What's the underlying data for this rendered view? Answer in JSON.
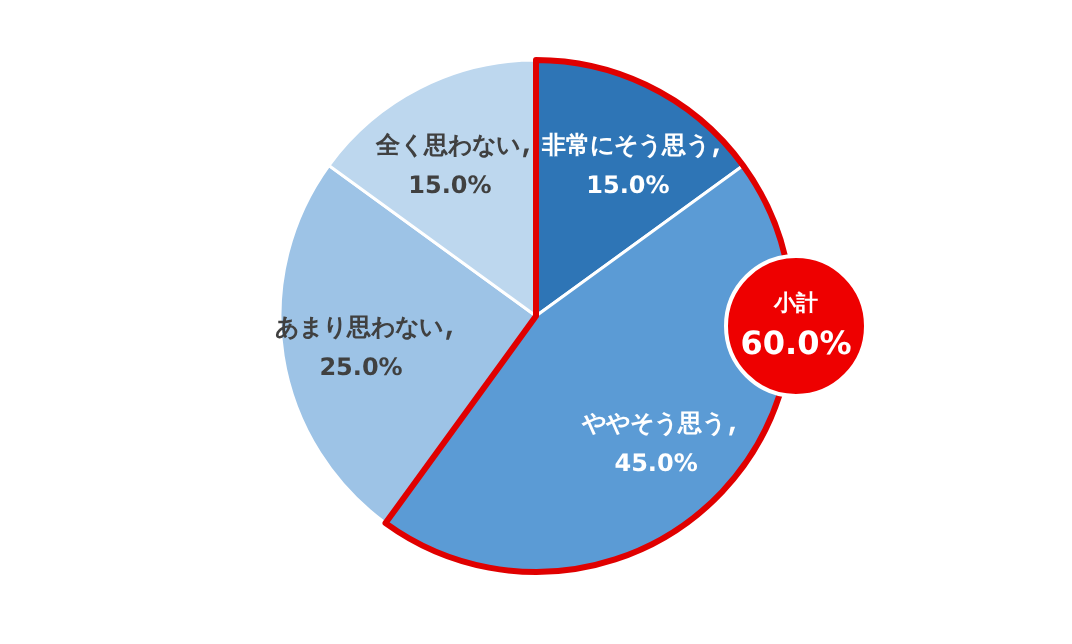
{
  "chart_data": {
    "type": "pie",
    "categories": [
      "非常にそう思う",
      "ややそう思う",
      "あまり思わない",
      "全く思わない"
    ],
    "values": [
      15,
      45,
      25,
      15
    ],
    "value_labels": [
      "15.0%",
      "45.0%",
      "25.0%",
      "15.0%"
    ],
    "colors": [
      "#2e75b6",
      "#5b9bd5",
      "#9dc3e6",
      "#bdd7ee"
    ],
    "annotations": [
      "小計",
      "60.0%"
    ]
  }
}
